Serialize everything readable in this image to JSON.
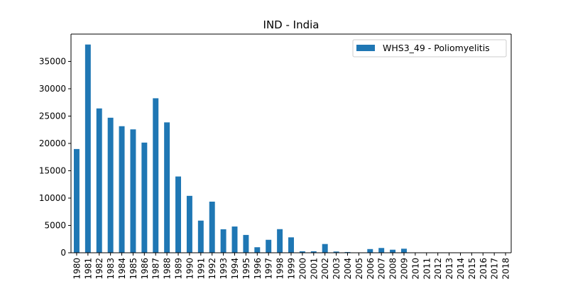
{
  "chart_data": {
    "type": "bar",
    "title": "IND - India",
    "xlabel": "",
    "ylabel": "",
    "categories": [
      "1980",
      "1981",
      "1982",
      "1983",
      "1984",
      "1985",
      "1986",
      "1987",
      "1988",
      "1989",
      "1990",
      "1991",
      "1992",
      "1993",
      "1994",
      "1995",
      "1996",
      "1997",
      "1998",
      "1999",
      "2000",
      "2001",
      "2002",
      "2003",
      "2004",
      "2005",
      "2006",
      "2007",
      "2008",
      "2009",
      "2010",
      "2011",
      "2012",
      "2013",
      "2014",
      "2015",
      "2016",
      "2017",
      "2018"
    ],
    "series": [
      {
        "name": "WHS3_49 - Poliomyelitis",
        "color": "#1f77b4",
        "values": [
          18975,
          38090,
          26400,
          24700,
          23150,
          22570,
          20150,
          28260,
          23850,
          13950,
          10410,
          5880,
          9350,
          4300,
          4800,
          3260,
          1010,
          2370,
          4320,
          2820,
          265,
          270,
          1600,
          225,
          135,
          66,
          676,
          874,
          559,
          741,
          0,
          0,
          0,
          0,
          0,
          0,
          0,
          0,
          0
        ]
      }
    ],
    "yticks": [
      0,
      5000,
      10000,
      15000,
      20000,
      25000,
      30000,
      35000
    ],
    "ylim": [
      0,
      40000
    ],
    "legend_position": "top-right",
    "grid": false
  }
}
